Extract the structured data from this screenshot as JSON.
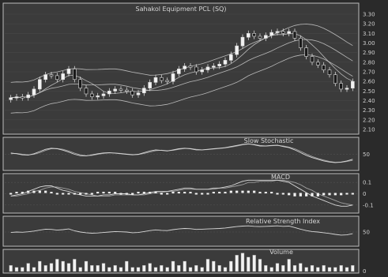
{
  "colors": {
    "page_bg": "#2a2a2a",
    "panel_bg": "#3b3b3b",
    "border": "#bcbcbc",
    "line": "#d8d8d8",
    "candle_up": "#f2f2f2",
    "candle_down": "#1a1a1a",
    "text": "#d6d6d6"
  },
  "chart_data": [
    {
      "type": "candlestick",
      "title": "Sahakol Equipment PCL (SQ)",
      "ylim": [
        2.1,
        3.3
      ],
      "yticks": [
        "3.30",
        "3.20",
        "3.10",
        "3.00",
        "2.90",
        "2.80",
        "2.70",
        "2.60",
        "2.50",
        "2.40",
        "2.30",
        "2.20",
        "2.10"
      ],
      "close": [
        2.43,
        2.44,
        2.43,
        2.46,
        2.52,
        2.62,
        2.67,
        2.66,
        2.62,
        2.68,
        2.73,
        2.62,
        2.53,
        2.47,
        2.44,
        2.45,
        2.47,
        2.5,
        2.52,
        2.51,
        2.5,
        2.46,
        2.48,
        2.53,
        2.59,
        2.64,
        2.61,
        2.6,
        2.68,
        2.73,
        2.76,
        2.75,
        2.7,
        2.72,
        2.75,
        2.76,
        2.78,
        2.82,
        2.88,
        2.97,
        3.06,
        3.1,
        3.07,
        3.05,
        3.08,
        3.11,
        3.12,
        3.1,
        3.12,
        3.05,
        2.95,
        2.86,
        2.8,
        2.77,
        2.72,
        2.67,
        2.58,
        2.52,
        2.53,
        2.6
      ]
    },
    {
      "type": "line",
      "title": "Slow Stochastic",
      "ylim": [
        0,
        100
      ],
      "yticks": [
        "50"
      ],
      "series": [
        {
          "values": [
            55,
            52,
            48,
            47,
            52,
            60,
            68,
            72,
            70,
            65,
            58,
            50,
            45,
            44,
            48,
            52,
            55,
            56,
            54,
            52,
            50,
            48,
            50,
            56,
            62,
            66,
            64,
            62,
            66,
            70,
            72,
            70,
            66,
            66,
            68,
            70,
            72,
            74,
            78,
            82,
            86,
            88,
            84,
            80,
            80,
            82,
            83,
            78,
            74,
            66,
            56,
            46,
            38,
            32,
            26,
            22,
            20,
            22,
            26,
            32
          ]
        },
        {
          "values": [
            52,
            53,
            50,
            48,
            50,
            56,
            64,
            70,
            71,
            68,
            62,
            54,
            48,
            45,
            46,
            50,
            53,
            55,
            55,
            53,
            51,
            49,
            49,
            53,
            58,
            63,
            65,
            63,
            64,
            68,
            71,
            71,
            68,
            66,
            67,
            69,
            71,
            73,
            76,
            80,
            84,
            87,
            86,
            82,
            80,
            81,
            82,
            80,
            76,
            70,
            61,
            51,
            42,
            35,
            29,
            24,
            21,
            21,
            24,
            28
          ]
        }
      ]
    },
    {
      "type": "bar+line",
      "title": "MACD",
      "ylim": [
        -0.15,
        0.15
      ],
      "yticks": [
        "0.1",
        "0",
        "-0.1"
      ],
      "histogram": [
        0,
        0.01,
        0.01,
        0.02,
        0.02,
        0.02,
        0.02,
        0.01,
        0,
        -0.01,
        -0.01,
        -0.01,
        -0.01,
        0,
        0,
        0.01,
        0.01,
        0.01,
        0.01,
        0,
        0,
        0,
        0.01,
        0.01,
        0.01,
        0.01,
        0,
        0,
        0.01,
        0.01,
        0.01,
        0.01,
        0,
        0,
        0,
        0.01,
        0.01,
        0.01,
        0.02,
        0.02,
        0.02,
        0.02,
        0.02,
        0.01,
        0.01,
        0.01,
        0,
        -0.01,
        -0.02,
        -0.03,
        -0.03,
        -0.03,
        -0.03,
        -0.03,
        -0.02,
        -0.02,
        -0.02,
        -0.02,
        -0.01,
        -0.01
      ],
      "series": [
        {
          "values": [
            -0.02,
            -0.01,
            0,
            0.02,
            0.04,
            0.06,
            0.07,
            0.07,
            0.05,
            0.03,
            0.02,
            0,
            -0.01,
            -0.02,
            -0.02,
            -0.02,
            -0.01,
            -0.01,
            0,
            0,
            0,
            -0.01,
            -0.01,
            0,
            0.01,
            0.02,
            0.02,
            0.02,
            0.03,
            0.04,
            0.05,
            0.05,
            0.04,
            0.04,
            0.04,
            0.05,
            0.05,
            0.06,
            0.07,
            0.09,
            0.11,
            0.12,
            0.12,
            0.12,
            0.12,
            0.12,
            0.12,
            0.11,
            0.1,
            0.07,
            0.04,
            0.01,
            -0.02,
            -0.04,
            -0.06,
            -0.08,
            -0.1,
            -0.11,
            -0.11,
            -0.1
          ]
        },
        {
          "values": [
            -0.02,
            -0.02,
            -0.01,
            0,
            0.02,
            0.03,
            0.05,
            0.06,
            0.06,
            0.05,
            0.04,
            0.02,
            0.01,
            0,
            -0.01,
            -0.02,
            -0.02,
            -0.02,
            -0.01,
            -0.01,
            -0.01,
            -0.01,
            -0.01,
            -0.01,
            0,
            0.01,
            0.01,
            0.02,
            0.02,
            0.03,
            0.04,
            0.04,
            0.04,
            0.04,
            0.04,
            0.04,
            0.05,
            0.05,
            0.06,
            0.07,
            0.08,
            0.1,
            0.1,
            0.11,
            0.11,
            0.11,
            0.12,
            0.12,
            0.11,
            0.1,
            0.08,
            0.05,
            0.03,
            0,
            -0.02,
            -0.04,
            -0.06,
            -0.08,
            -0.09,
            -0.1
          ]
        }
      ]
    },
    {
      "type": "line",
      "title": "Relative Strength Index",
      "ylim": [
        0,
        100
      ],
      "yticks": [
        "50"
      ],
      "series": [
        {
          "values": [
            48,
            50,
            49,
            51,
            54,
            58,
            62,
            61,
            58,
            60,
            63,
            55,
            50,
            47,
            45,
            46,
            48,
            50,
            52,
            51,
            50,
            47,
            48,
            52,
            56,
            59,
            57,
            56,
            60,
            63,
            65,
            64,
            61,
            62,
            63,
            64,
            65,
            67,
            70,
            73,
            75,
            76,
            74,
            73,
            74,
            75,
            76,
            74,
            75,
            69,
            62,
            56,
            52,
            50,
            47,
            44,
            40,
            37,
            38,
            43
          ]
        }
      ]
    },
    {
      "type": "bar",
      "title": "Volume",
      "ylim": [
        0,
        10
      ],
      "yticks": [
        "0"
      ],
      "values": [
        3,
        2,
        2,
        4,
        2,
        5,
        3,
        4,
        6,
        5,
        4,
        6,
        2,
        5,
        3,
        3,
        4,
        2,
        3,
        2,
        5,
        2,
        2,
        3,
        4,
        2,
        3,
        2,
        5,
        3,
        5,
        2,
        3,
        2,
        6,
        5,
        3,
        2,
        5,
        8,
        9,
        7,
        8,
        6,
        3,
        2,
        4,
        3,
        6,
        3,
        4,
        2,
        3,
        2,
        3,
        2,
        2,
        3,
        2,
        3
      ]
    }
  ]
}
